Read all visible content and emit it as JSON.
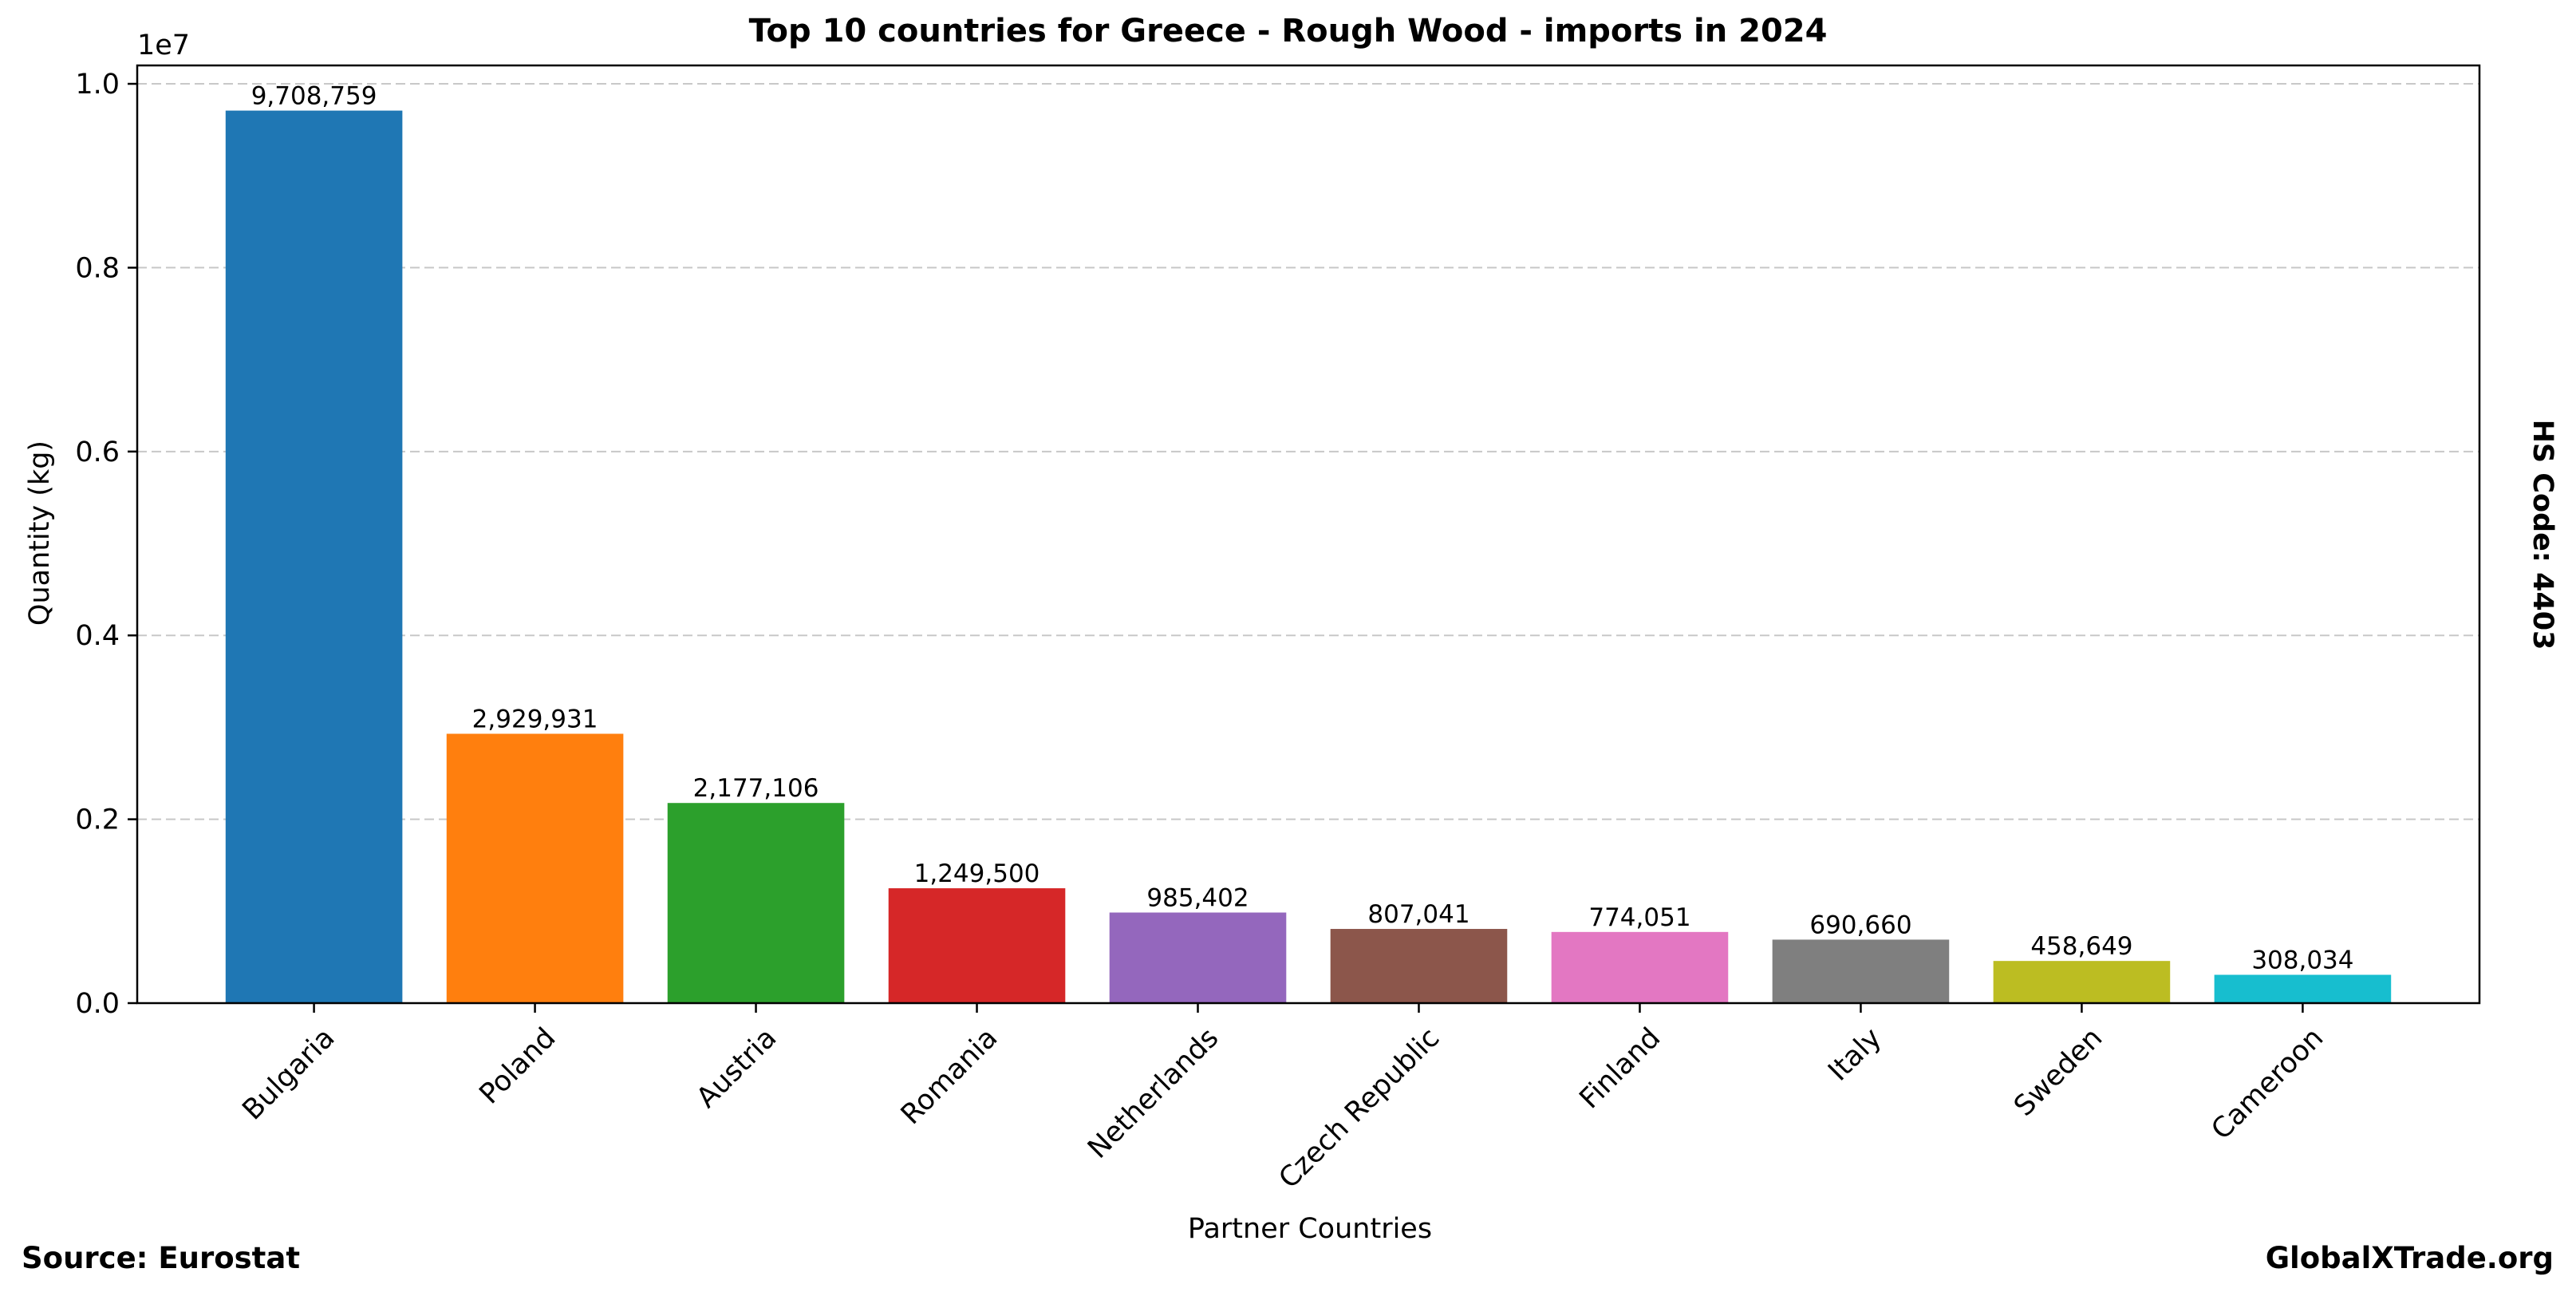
{
  "chart_data": {
    "type": "bar",
    "title": "Top 10 countries for Greece - Rough Wood - imports in 2024",
    "xlabel": "Partner Countries",
    "ylabel": "Quantity (kg)",
    "y_scale_label": "1e7",
    "ylim": [
      0,
      10200000
    ],
    "yticks": [
      0,
      2000000,
      4000000,
      6000000,
      8000000,
      10000000
    ],
    "ytick_labels": [
      "0.0",
      "0.2",
      "0.4",
      "0.6",
      "0.8",
      "1.0"
    ],
    "grid": "y-dashed",
    "categories": [
      "Bulgaria",
      "Poland",
      "Austria",
      "Romania",
      "Netherlands",
      "Czech Republic",
      "Finland",
      "Italy",
      "Sweden",
      "Cameroon"
    ],
    "values": [
      9708759,
      2929931,
      2177106,
      1249500,
      985402,
      807041,
      774051,
      690660,
      458649,
      308034
    ],
    "data_labels": [
      "9,708,759",
      "2,929,931",
      "2,177,106",
      "1,249,500",
      "985,402",
      "807,041",
      "774,051",
      "690,660",
      "458,649",
      "308,034"
    ],
    "colors": [
      "#1f77b4",
      "#ff7f0e",
      "#2ca02c",
      "#d62728",
      "#9467bd",
      "#8c564b",
      "#e377c2",
      "#7f7f7f",
      "#bcbd22",
      "#17becf"
    ]
  },
  "side_label": "HS Code: 4403",
  "source": "Source: Eurostat",
  "brand": "GlobalXTrade.org"
}
